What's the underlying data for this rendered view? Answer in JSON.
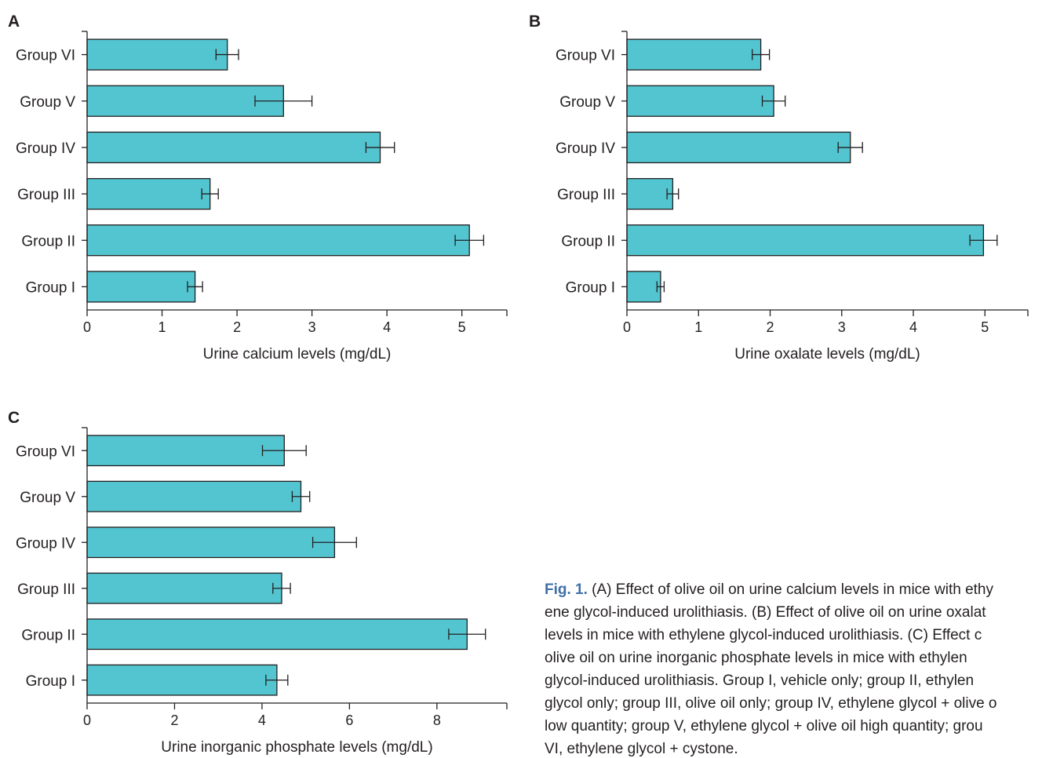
{
  "chart_data": [
    {
      "type": "bar",
      "panel_label": "A",
      "orientation": "horizontal",
      "categories": [
        "Group VI",
        "Group V",
        "Group IV",
        "Group III",
        "Group II",
        "Group I"
      ],
      "values": [
        1.87,
        2.62,
        3.91,
        1.64,
        5.1,
        1.44
      ],
      "errors": [
        0.15,
        0.38,
        0.19,
        0.11,
        0.19,
        0.1
      ],
      "xlabel": "Urine calcium levels (mg/dL)",
      "ylabel": "",
      "xlim": [
        0,
        5.6
      ],
      "xticks": [
        "0",
        "1",
        "2",
        "3",
        "4",
        "5"
      ],
      "bar_color": "#53c5d0",
      "grid": false
    },
    {
      "type": "bar",
      "panel_label": "B",
      "orientation": "horizontal",
      "categories": [
        "Group VI",
        "Group V",
        "Group IV",
        "Group III",
        "Group II",
        "Group I"
      ],
      "values": [
        1.87,
        2.05,
        3.12,
        0.64,
        4.98,
        0.47
      ],
      "errors": [
        0.12,
        0.16,
        0.17,
        0.08,
        0.19,
        0.05
      ],
      "xlabel": "Urine oxalate levels (mg/dL)",
      "ylabel": "",
      "xlim": [
        0,
        5.6
      ],
      "xticks": [
        "0",
        "1",
        "2",
        "3",
        "4",
        "5"
      ],
      "bar_color": "#53c5d0",
      "grid": false
    },
    {
      "type": "bar",
      "panel_label": "C",
      "orientation": "horizontal",
      "categories": [
        "Group VI",
        "Group V",
        "Group IV",
        "Group III",
        "Group II",
        "Group I"
      ],
      "values": [
        4.51,
        4.89,
        5.66,
        4.45,
        8.69,
        4.34
      ],
      "errors": [
        0.5,
        0.2,
        0.5,
        0.2,
        0.42,
        0.25
      ],
      "xlabel": "Urine inorganic phosphate levels (mg/dL)",
      "ylabel": "",
      "xlim": [
        0,
        9.6
      ],
      "xticks": [
        "0",
        "2",
        "4",
        "6",
        "8"
      ],
      "bar_color": "#53c5d0",
      "grid": false
    }
  ],
  "caption": {
    "label": "Fig. 1.",
    "lines": [
      " (A) Effect of olive oil on urine calcium levels in mice with ethy",
      "ene glycol-induced urolithiasis. (B) Effect of olive oil on urine oxalat",
      "levels in mice with ethylene glycol-induced urolithiasis. (C) Effect c",
      "olive oil on urine inorganic phosphate levels in mice with ethylen",
      "glycol-induced urolithiasis. Group I, vehicle only; group II, ethylen",
      "glycol only; group III, olive oil only; group IV, ethylene glycol + olive o",
      "low quantity; group V, ethylene glycol + olive oil high quantity; grou",
      "VI, ethylene glycol + cystone."
    ]
  }
}
